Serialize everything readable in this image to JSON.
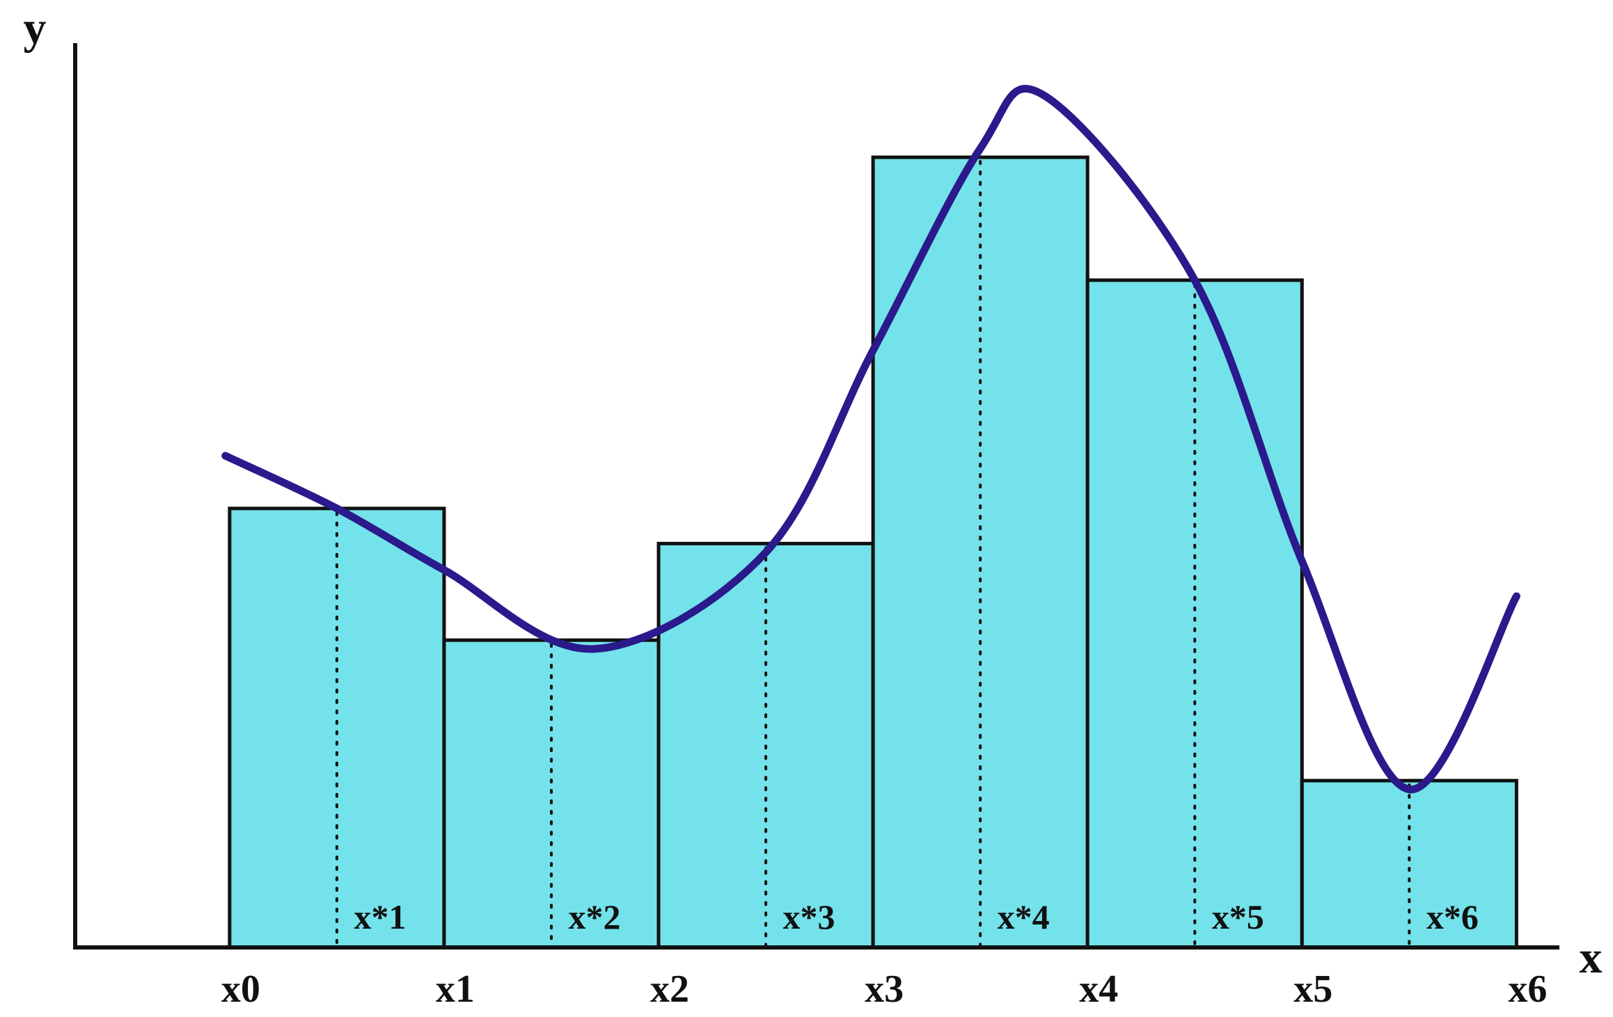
{
  "chart_data": {
    "type": "bar",
    "subtype": "riemann-sum-midpoint",
    "title": "",
    "xlabel": "x",
    "ylabel": "y",
    "x_ticks": [
      "x0",
      "x1",
      "x2",
      "x3",
      "x4",
      "x5",
      "x6"
    ],
    "sample_labels": [
      "x*1",
      "x*2",
      "x*3",
      "x*4",
      "x*5",
      "x*6"
    ],
    "partition": [
      0,
      1,
      2,
      3,
      4,
      5,
      6
    ],
    "sample_points": [
      0.5,
      1.5,
      2.5,
      3.5,
      4.5,
      5.5
    ],
    "values": [
      5.0,
      3.5,
      4.6,
      9.0,
      7.6,
      1.9
    ],
    "curve": {
      "x": [
        -0.02,
        0.5,
        1.0,
        1.7,
        2.5,
        3.0,
        3.5,
        3.8,
        4.5,
        5.0,
        5.5,
        6.0
      ],
      "y": [
        5.6,
        5.0,
        4.3,
        3.4,
        4.5,
        6.8,
        9.1,
        9.7,
        7.6,
        4.4,
        1.8,
        4.0
      ]
    },
    "xlim": [
      -0.72,
      6.2
    ],
    "ylim": [
      0,
      10.3
    ],
    "grid": false,
    "legend": "none",
    "colors": {
      "bar_fill": "#74e2ea",
      "bar_stroke": "#111111",
      "curve": "#2a1a8c",
      "axis": "#111111"
    }
  }
}
